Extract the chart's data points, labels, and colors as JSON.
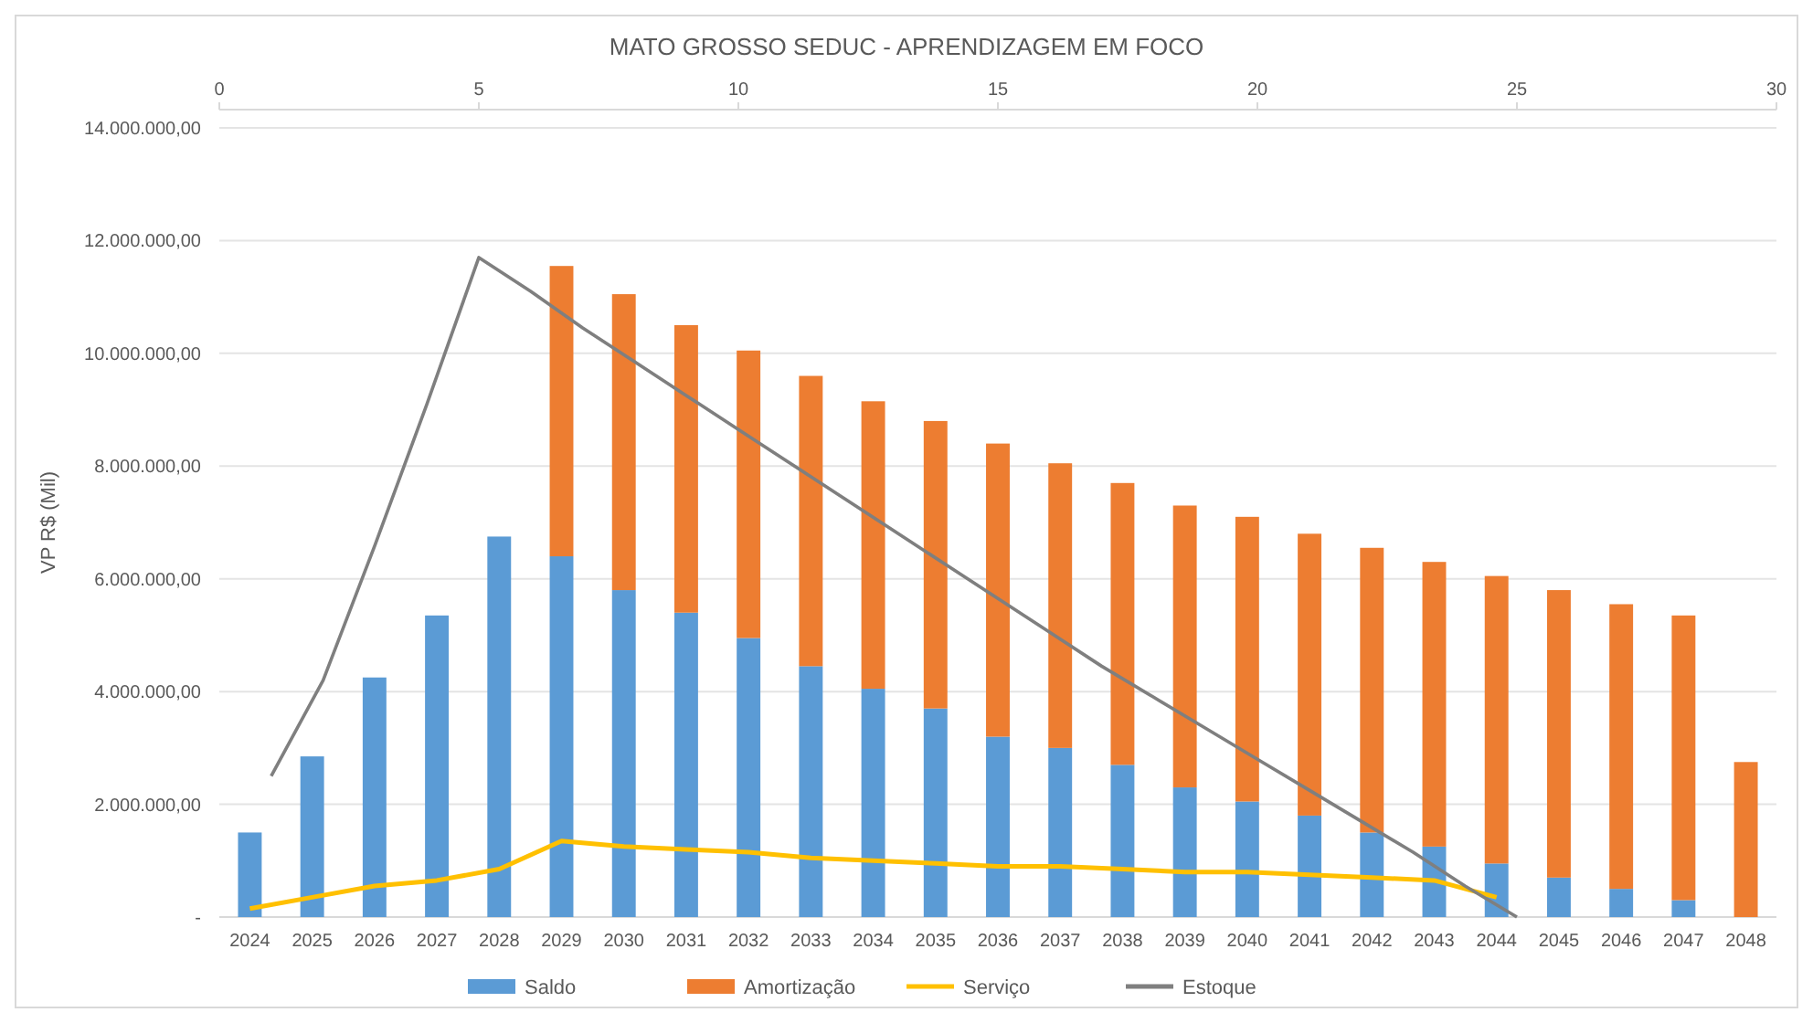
{
  "chart_data": {
    "type": "bar",
    "stacked": true,
    "title": "MATO GROSSO SEDUC - APRENDIZAGEM EM FOCO",
    "ylabel": "VP R$ (Mil)",
    "categories": [
      "2024",
      "2025",
      "2026",
      "2027",
      "2028",
      "2029",
      "2030",
      "2031",
      "2032",
      "2033",
      "2034",
      "2035",
      "2036",
      "2037",
      "2038",
      "2039",
      "2040",
      "2041",
      "2042",
      "2043",
      "2044",
      "2045",
      "2046",
      "2047",
      "2048"
    ],
    "series": [
      {
        "name": "Saldo",
        "color": "#5b9bd5",
        "values": [
          1500000,
          2850000,
          4250000,
          5350000,
          6750000,
          6400000,
          5800000,
          5400000,
          4950000,
          4450000,
          4050000,
          3700000,
          3200000,
          3000000,
          2700000,
          2300000,
          2050000,
          1800000,
          1500000,
          1250000,
          950000,
          700000,
          500000,
          300000,
          0
        ]
      },
      {
        "name": "Amortização",
        "color": "#ed7d31",
        "values": [
          null,
          null,
          null,
          null,
          null,
          5150000,
          5250000,
          5100000,
          5100000,
          5150000,
          5100000,
          5100000,
          5200000,
          5050000,
          5000000,
          5000000,
          5050000,
          5000000,
          5050000,
          5050000,
          5100000,
          5100000,
          5050000,
          5050000,
          2750000
        ]
      },
      {
        "name": "Serviço",
        "type": "line",
        "color": "#ffc000",
        "values": [
          150000,
          350000,
          550000,
          650000,
          850000,
          1350000,
          1250000,
          1200000,
          1150000,
          1050000,
          1000000,
          950000,
          900000,
          900000,
          850000,
          800000,
          800000,
          750000,
          700000,
          650000,
          350000,
          null,
          null,
          null,
          null
        ]
      },
      {
        "name": "Estoque",
        "type": "line",
        "axis": "x2",
        "color": "#7f7f7f",
        "x": [
          1,
          2,
          3,
          4,
          5,
          6,
          7,
          8,
          9,
          10,
          11,
          12,
          13,
          14,
          15,
          16,
          17,
          18,
          19,
          20,
          21,
          22,
          23,
          24,
          25
        ],
        "values": [
          2500000,
          4200000,
          6600000,
          9100000,
          11700000,
          11100000,
          10450000,
          9850000,
          9250000,
          8650000,
          8050000,
          7450000,
          6850000,
          6250000,
          5650000,
          5050000,
          4450000,
          3900000,
          3350000,
          2800000,
          2250000,
          1700000,
          1150000,
          550000,
          0
        ]
      }
    ],
    "ylim": [
      0,
      14000000
    ],
    "yticks": [
      {
        "value": 0,
        "label": "-"
      },
      {
        "value": 2000000,
        "label": "2.000.000,00"
      },
      {
        "value": 4000000,
        "label": "4.000.000,00"
      },
      {
        "value": 6000000,
        "label": "6.000.000,00"
      },
      {
        "value": 8000000,
        "label": "8.000.000,00"
      },
      {
        "value": 10000000,
        "label": "10.000.000,00"
      },
      {
        "value": 12000000,
        "label": "12.000.000,00"
      },
      {
        "value": 14000000,
        "label": "14.000.000,00"
      }
    ],
    "x2lim": [
      0,
      30
    ],
    "x2ticks": [
      0,
      5,
      10,
      15,
      20,
      25,
      30
    ],
    "grid": "y",
    "legend": "bottom"
  }
}
